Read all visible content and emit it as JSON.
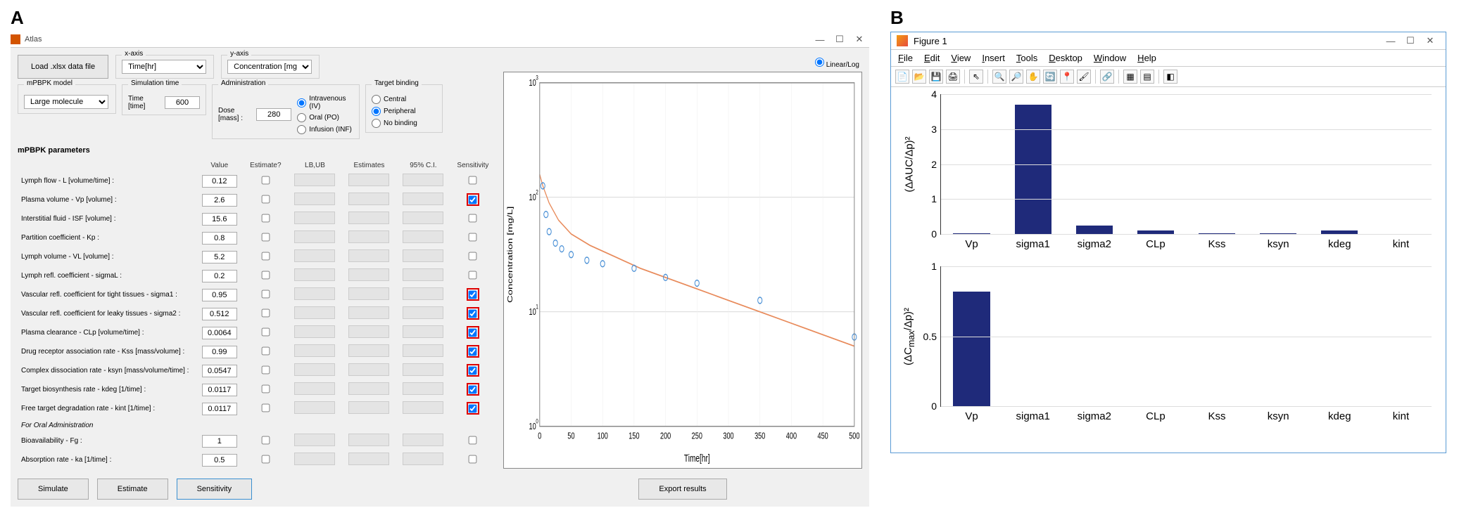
{
  "panelA": {
    "label": "A",
    "windowTitle": "Atlas",
    "loadBtn": "Load .xlsx data file",
    "xaxis": {
      "label": "x-axis",
      "value": "Time[hr]"
    },
    "yaxis": {
      "label": "y-axis",
      "value": "Concentration [mg/L]"
    },
    "model": {
      "label": "mPBPK model",
      "value": "Large molecule"
    },
    "simtime": {
      "label": "Simulation time",
      "field": "Time [time]",
      "value": "600"
    },
    "admin": {
      "label": "Administration",
      "doseField": "Dose [mass] :",
      "doseValue": "280",
      "routes": [
        {
          "label": "Intravenous (IV)",
          "checked": true
        },
        {
          "label": "Oral (PO)",
          "checked": false
        },
        {
          "label": "Infusion (INF)",
          "checked": false
        }
      ]
    },
    "target": {
      "label": "Target binding",
      "options": [
        {
          "label": "Central",
          "checked": false
        },
        {
          "label": "Peripheral",
          "checked": true
        },
        {
          "label": "No binding",
          "checked": false
        }
      ]
    },
    "paramHeader": "mPBPK parameters",
    "columns": {
      "value": "Value",
      "estimate": "Estimate?",
      "lbub": "LB,UB",
      "estimates": "Estimates",
      "ci": "95% C.I.",
      "sens": "Sensitivity"
    },
    "params": [
      {
        "label": "Lymph flow - L [volume/time] :",
        "value": "0.12",
        "sens": false,
        "hl": false
      },
      {
        "label": "Plasma volume - Vp [volume] :",
        "value": "2.6",
        "sens": true,
        "hl": true
      },
      {
        "label": "Interstitial fluid - ISF [volume] :",
        "value": "15.6",
        "sens": false,
        "hl": false
      },
      {
        "label": "Partition coefficient - Kp :",
        "value": "0.8",
        "sens": false,
        "hl": false
      },
      {
        "label": "Lymph volume - VL [volume] :",
        "value": "5.2",
        "sens": false,
        "hl": false
      },
      {
        "label": "Lymph refl. coefficient - sigmaL :",
        "value": "0.2",
        "sens": false,
        "hl": false
      },
      {
        "label": "Vascular refl. coefficient for tight tissues - sigma1 :",
        "value": "0.95",
        "sens": true,
        "hl": true
      },
      {
        "label": "Vascular refl. coefficient for leaky tissues - sigma2 :",
        "value": "0.512",
        "sens": true,
        "hl": true
      },
      {
        "label": "Plasma clearance - CLp [volume/time] :",
        "value": "0.0064",
        "sens": true,
        "hl": true
      },
      {
        "label": "Drug receptor association rate - Kss [mass/volume] :",
        "value": "0.99",
        "sens": true,
        "hl": true
      },
      {
        "label": "Complex dissociation rate - ksyn [mass/volume/time] :",
        "value": "0.0547",
        "sens": true,
        "hl": true
      },
      {
        "label": "Target biosynthesis rate - kdeg [1/time] :",
        "value": "0.0117",
        "sens": true,
        "hl": true
      },
      {
        "label": "Free target degradation rate - kint [1/time] :",
        "value": "0.0117",
        "sens": true,
        "hl": true
      }
    ],
    "oralHeader": "For Oral Administration",
    "oralParams": [
      {
        "label": "Bioavailability - Fg :",
        "value": "1"
      },
      {
        "label": "Absorption rate - ka [1/time] :",
        "value": "0.5"
      }
    ],
    "buttons": {
      "simulate": "Simulate",
      "estimate": "Estimate",
      "sensitivity": "Sensitivity",
      "export": "Export results"
    },
    "chart": {
      "scaleToggle": "Linear/Log",
      "xlabel": "Time[hr]",
      "ylabel": "Concentration [mg/L]",
      "xmax": 500,
      "xtick": 50,
      "yticks_log": [
        0,
        1,
        2,
        3
      ],
      "line_color": "#e88a5a",
      "point_color": "#4a90d6",
      "curve": [
        [
          0,
          2.2
        ],
        [
          5,
          2.1
        ],
        [
          15,
          1.95
        ],
        [
          30,
          1.8
        ],
        [
          50,
          1.68
        ],
        [
          80,
          1.58
        ],
        [
          120,
          1.48
        ],
        [
          160,
          1.38
        ],
        [
          200,
          1.3
        ],
        [
          250,
          1.2
        ],
        [
          300,
          1.1
        ],
        [
          350,
          1.0
        ],
        [
          400,
          0.9
        ],
        [
          450,
          0.8
        ],
        [
          500,
          0.7
        ]
      ],
      "points": [
        [
          5,
          2.1
        ],
        [
          10,
          1.85
        ],
        [
          15,
          1.7
        ],
        [
          25,
          1.6
        ],
        [
          35,
          1.55
        ],
        [
          50,
          1.5
        ],
        [
          75,
          1.45
        ],
        [
          100,
          1.42
        ],
        [
          150,
          1.38
        ],
        [
          200,
          1.3
        ],
        [
          250,
          1.25
        ],
        [
          350,
          1.1
        ],
        [
          500,
          0.78
        ]
      ]
    }
  },
  "panelB": {
    "label": "B",
    "windowTitle": "Figure 1",
    "menus": [
      "File",
      "Edit",
      "View",
      "Insert",
      "Tools",
      "Desktop",
      "Window",
      "Help"
    ],
    "categories": [
      "Vp",
      "sigma1",
      "sigma2",
      "CLp",
      "Kss",
      "ksyn",
      "kdeg",
      "kint"
    ],
    "chart1": {
      "ylabel": "(ΔAUC/Δp)²",
      "ymax": 4,
      "ytick": 1,
      "values": [
        0.03,
        3.7,
        0.25,
        0.1,
        0.02,
        0.03,
        0.1,
        0.0
      ],
      "bar_color": "#1f2a7a"
    },
    "chart2": {
      "ylabel": "(ΔCmax/Δp)²",
      "ymax": 1,
      "ytick": 0.5,
      "values": [
        0.82,
        0.0,
        0.0,
        0.0,
        0.0,
        0.0,
        0.0,
        0.0
      ],
      "bar_color": "#1f2a7a"
    }
  }
}
